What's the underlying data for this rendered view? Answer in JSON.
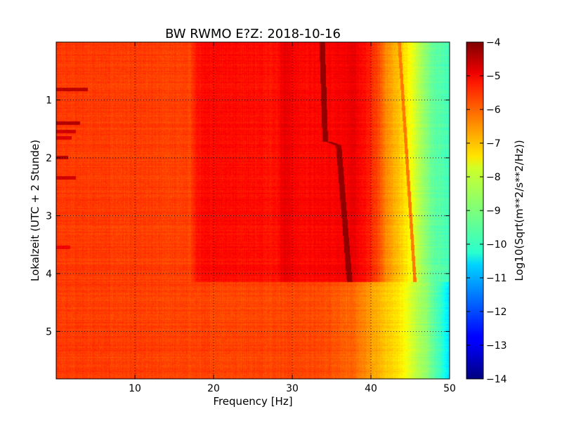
{
  "chart_data": {
    "type": "heatmap",
    "title": "BW RWMO E?Z: 2018-10-16",
    "xlabel": "Frequency [Hz]",
    "ylabel": "Lokalzeit (UTC + 2 Stunde)",
    "xlim": [
      0,
      50
    ],
    "ylim": [
      5.82,
      0.0
    ],
    "x_ticks": [
      10,
      20,
      30,
      40,
      50
    ],
    "x_tick_labels": [
      "10",
      "20",
      "30",
      "40",
      "50"
    ],
    "y_ticks": [
      1,
      2,
      3,
      4,
      5
    ],
    "y_tick_labels": [
      "1",
      "2",
      "3",
      "4",
      "5"
    ],
    "grid": true,
    "colormap": "jet",
    "colorbar": {
      "label": "Log10(Sqrt(m**2/s**2/Hz))",
      "range": [
        -14,
        -4
      ],
      "ticks": [
        -4,
        -5,
        -6,
        -7,
        -8,
        -9,
        -10,
        -11,
        -12,
        -13,
        -14
      ],
      "tick_labels": [
        "−4",
        "−5",
        "−6",
        "−7",
        "−8",
        "−9",
        "−10",
        "−11",
        "−12",
        "−13",
        "−14"
      ]
    },
    "regime_change_time": 4.15,
    "levels_before": {
      "freq": [
        0,
        17,
        18,
        20,
        28,
        29,
        30,
        31,
        33,
        38,
        40,
        41,
        42,
        43,
        44,
        45,
        46,
        47,
        48,
        50
      ],
      "value": [
        -5.8,
        -5.9,
        -5.4,
        -5.3,
        -5.4,
        -5.0,
        -5.2,
        -5.3,
        -5.3,
        -5.1,
        -5.6,
        -6.0,
        -6.6,
        -7.0,
        -7.3,
        -7.8,
        -8.4,
        -8.9,
        -9.3,
        -9.6
      ]
    },
    "levels_after": {
      "freq": [
        0,
        15,
        30,
        35,
        38,
        40,
        41,
        42,
        43,
        44,
        45,
        46,
        47,
        48,
        49,
        50
      ],
      "value": [
        -5.8,
        -5.9,
        -5.9,
        -6.0,
        -6.3,
        -6.8,
        -7.0,
        -7.2,
        -7.4,
        -7.6,
        -8.1,
        -8.5,
        -8.8,
        -9.3,
        -9.8,
        -10.6
      ]
    },
    "tonal_lines": [
      {
        "t": [
          0.0,
          1.72,
          1.72,
          1.78,
          1.78,
          4.15
        ],
        "f": [
          33.8,
          34.2,
          34.6,
          35.8,
          36.2,
          37.3
        ],
        "value": -4.2
      },
      {
        "t": [
          0.0,
          4.15
        ],
        "f": [
          43.6,
          45.6
        ],
        "value": -6.6
      }
    ],
    "transient_bands": [
      {
        "t": 0.82,
        "f_end": 4,
        "value": -4.6
      },
      {
        "t": 1.4,
        "f_end": 3,
        "value": -4.5
      },
      {
        "t": 1.55,
        "f_end": 2.5,
        "value": -4.8
      },
      {
        "t": 1.65,
        "f_end": 2,
        "value": -4.9
      },
      {
        "t": 2.0,
        "f_end": 1.5,
        "value": -4.6
      },
      {
        "t": 2.35,
        "f_end": 2.5,
        "value": -4.8
      },
      {
        "t": 3.55,
        "f_end": 1.8,
        "value": -5.1
      }
    ]
  }
}
